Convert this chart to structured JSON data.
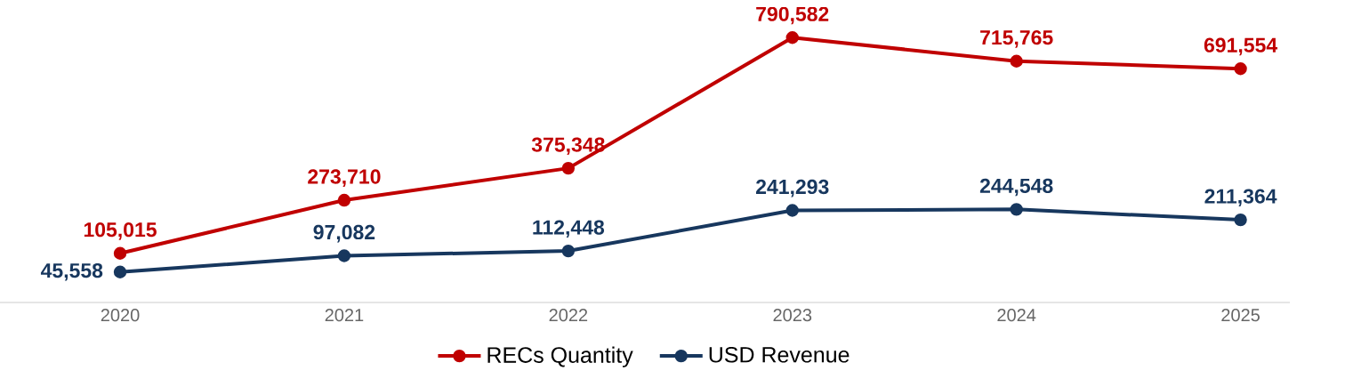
{
  "chart_data": {
    "type": "line",
    "categories": [
      "2020",
      "2021",
      "2022",
      "2023",
      "2024",
      "2025"
    ],
    "series": [
      {
        "name": "RECs Quantity",
        "color": "#c00000",
        "values": [
          105015,
          273710,
          375348,
          790582,
          715765,
          691554
        ],
        "value_labels": [
          "105,015",
          "273,710",
          "375,348",
          "790,582",
          "715,765",
          "691,554"
        ]
      },
      {
        "name": "USD Revenue",
        "color": "#17375e",
        "values": [
          45558,
          97082,
          112448,
          241293,
          244548,
          211364
        ],
        "value_labels": [
          "45,558",
          "97,082",
          "112,448",
          "241,293",
          "244,548",
          "211,364"
        ]
      }
    ],
    "tick_labels": "x",
    "legend": "bottom",
    "marker": "circle",
    "line_style": "solid"
  }
}
